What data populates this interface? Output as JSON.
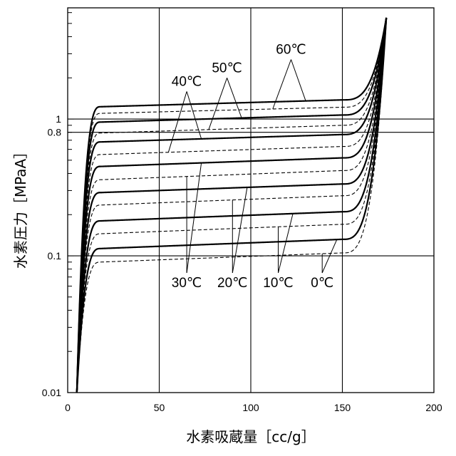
{
  "chart_data": {
    "type": "line",
    "xlabel": "水素吸蔵量［cc/g］",
    "ylabel": "水素圧力［MPaA］",
    "xlim": [
      0,
      200
    ],
    "ylim": [
      0.01,
      6.5
    ],
    "yscale": "log",
    "x_ticks": [
      0,
      50,
      100,
      150,
      200
    ],
    "x_tick_labels": [
      "0",
      "50",
      "100",
      "150",
      "200"
    ],
    "y_ticks": [
      0.01,
      0.1,
      0.8,
      1
    ],
    "y_tick_labels": [
      "0.01",
      "0.1",
      "0.8",
      "1"
    ],
    "grid": {
      "x": [
        50,
        100,
        150
      ],
      "y": [
        0.1,
        0.8,
        1
      ]
    },
    "line_styles": {
      "solid": "#000000",
      "dashed": "#000000"
    },
    "series": [
      {
        "name": "0℃",
        "style": "dashed",
        "plateau": [
          0.09,
          0.105
        ]
      },
      {
        "name": "0℃",
        "style": "solid",
        "plateau": [
          0.113,
          0.132
        ]
      },
      {
        "name": "10℃",
        "style": "dashed",
        "plateau": [
          0.145,
          0.17
        ]
      },
      {
        "name": "10℃",
        "style": "solid",
        "plateau": [
          0.18,
          0.21
        ]
      },
      {
        "name": "20℃",
        "style": "dashed",
        "plateau": [
          0.235,
          0.275
        ]
      },
      {
        "name": "20℃",
        "style": "solid",
        "plateau": [
          0.29,
          0.335
        ]
      },
      {
        "name": "30℃",
        "style": "dashed",
        "plateau": [
          0.36,
          0.42
        ]
      },
      {
        "name": "30℃",
        "style": "solid",
        "plateau": [
          0.45,
          0.52
        ]
      },
      {
        "name": "40℃",
        "style": "dashed",
        "plateau": [
          0.55,
          0.63
        ]
      },
      {
        "name": "40℃",
        "style": "solid",
        "plateau": [
          0.68,
          0.77
        ]
      },
      {
        "name": "50℃",
        "style": "dashed",
        "plateau": [
          0.79,
          0.9
        ]
      },
      {
        "name": "50℃",
        "style": "solid",
        "plateau": [
          0.95,
          1.07
        ]
      },
      {
        "name": "60℃",
        "style": "dashed",
        "plateau": [
          1.1,
          1.22
        ]
      },
      {
        "name": "60℃",
        "style": "solid",
        "plateau": [
          1.23,
          1.38
        ]
      }
    ],
    "curve_x": [
      4,
      6,
      8,
      10,
      12,
      15,
      20,
      30,
      50,
      80,
      110,
      140,
      150,
      160,
      165,
      168,
      170,
      172,
      174
    ],
    "end_point": [
      174,
      5.5
    ],
    "annotations": [
      {
        "text": "60℃",
        "x": 122,
        "y": 3.0
      },
      {
        "text": "50℃",
        "x": 87,
        "y": 2.2
      },
      {
        "text": "40℃",
        "x": 65,
        "y": 1.75
      },
      {
        "text": "30℃",
        "x": 65,
        "y": 0.059
      },
      {
        "text": "20℃",
        "x": 90,
        "y": 0.059
      },
      {
        "text": "10℃",
        "x": 115,
        "y": 0.059
      },
      {
        "text": "0℃",
        "x": 139,
        "y": 0.059
      }
    ]
  }
}
